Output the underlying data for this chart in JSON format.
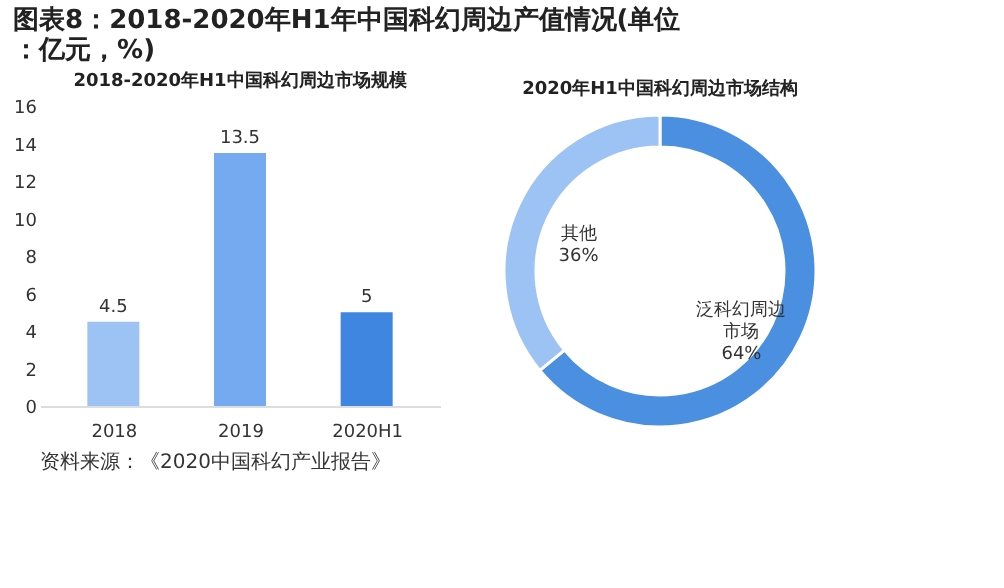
{
  "chart_data": [
    {
      "type": "bar",
      "title": "图表8：2018-2020年H1年中国科幻周边产值情况(单位：亿元，%)",
      "subtitle": "2018-2020年H1中国科幻周边市场规模",
      "categories": [
        "2018",
        "2019",
        "2020H1"
      ],
      "values": [
        4.5,
        13.5,
        5
      ],
      "colors": [
        "#9cc3f3",
        "#75aaf0",
        "#3f86e0"
      ],
      "ylim": [
        0,
        16
      ],
      "yticks": [
        0,
        2,
        4,
        6,
        8,
        10,
        12,
        14,
        16
      ],
      "grid": false,
      "data_labels": true,
      "annotations": [
        "资料来源：《2020中国科幻产业报告》"
      ]
    },
    {
      "type": "donut",
      "subtitle": "2020年H1中国科幻周边市场结构",
      "categories": [
        "泛科幻周边市场",
        "其他"
      ],
      "values": [
        64,
        36
      ],
      "colors": [
        "#4a8fe0",
        "#9cc3f3"
      ],
      "value_labels": [
        "64%",
        "36%"
      ]
    }
  ]
}
